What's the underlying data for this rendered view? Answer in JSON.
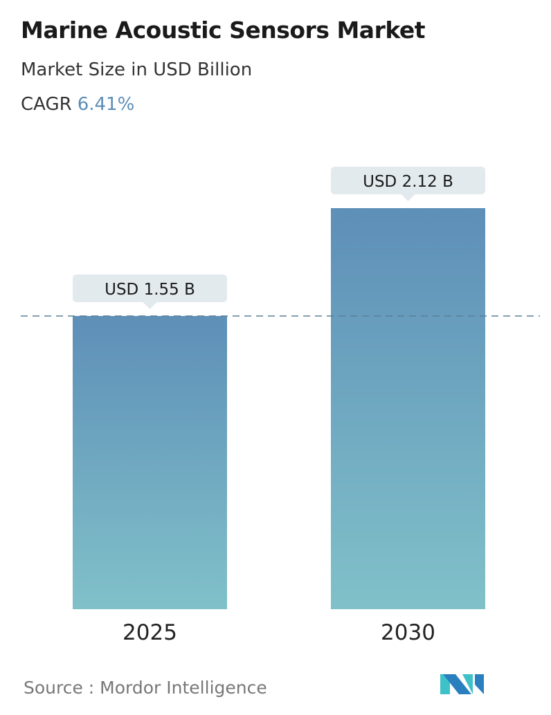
{
  "title": "Marine Acoustic Sensors Market",
  "subtitle": "Market Size in USD Billion",
  "cagr_label": "CAGR",
  "cagr_value": "6.41%",
  "source": "Source :  Mordor Intelligence",
  "logo_text": "MI",
  "colors": {
    "bar_top": "#5e8fb8",
    "bar_bottom": "#80c1c9",
    "cagr": "#5b8db8",
    "label_bg": "#e3eaee"
  },
  "chart_data": {
    "type": "bar",
    "categories": [
      "2025",
      "2030"
    ],
    "values": [
      1.55,
      2.12
    ],
    "data_labels": [
      "USD 1.55 B",
      "USD 2.12 B"
    ],
    "title": "Marine Acoustic Sensors Market",
    "ylabel": "Market Size in USD Billion",
    "reference_line": 1.55,
    "grid": false
  }
}
